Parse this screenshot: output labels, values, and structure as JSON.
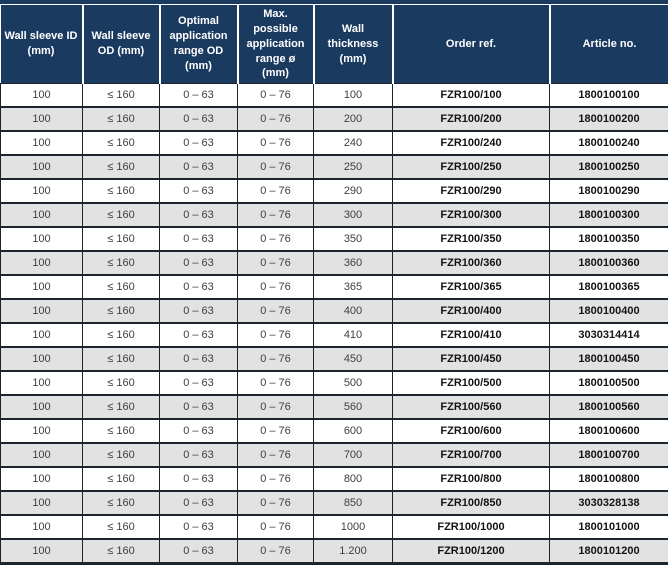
{
  "colors": {
    "header_bg": "#1b3a60",
    "alt_row_bg": "#e2e2e2",
    "grid_line": "#1c2430",
    "header_text": "#ffffff",
    "cell_text": "#3e3e3e",
    "bold_cell_text": "#141414"
  },
  "table": {
    "columns": [
      {
        "key": "wall_sleeve_id",
        "label": "Wall sleeve ID (mm)",
        "bold": false
      },
      {
        "key": "wall_sleeve_od",
        "label": "Wall sleeve OD (mm)",
        "bold": false
      },
      {
        "key": "optimal_application_range_od",
        "label": "Optimal application range OD (mm)",
        "bold": false
      },
      {
        "key": "max_possible_application_range",
        "label": "Max. possible application range ø (mm)",
        "bold": false
      },
      {
        "key": "wall_thickness",
        "label": "Wall thickness (mm)",
        "bold": false
      },
      {
        "key": "order_ref",
        "label": "Order ref.",
        "bold": true
      },
      {
        "key": "article_no",
        "label": "Article no.",
        "bold": true
      }
    ],
    "rows": [
      [
        "100",
        "≤ 160",
        "0 – 63",
        "0 – 76",
        "100",
        "FZR100/100",
        "1800100100"
      ],
      [
        "100",
        "≤ 160",
        "0 – 63",
        "0 – 76",
        "200",
        "FZR100/200",
        "1800100200"
      ],
      [
        "100",
        "≤ 160",
        "0 – 63",
        "0 – 76",
        "240",
        "FZR100/240",
        "1800100240"
      ],
      [
        "100",
        "≤ 160",
        "0 – 63",
        "0 – 76",
        "250",
        "FZR100/250",
        "1800100250"
      ],
      [
        "100",
        "≤ 160",
        "0 – 63",
        "0 – 76",
        "290",
        "FZR100/290",
        "1800100290"
      ],
      [
        "100",
        "≤ 160",
        "0 – 63",
        "0 – 76",
        "300",
        "FZR100/300",
        "1800100300"
      ],
      [
        "100",
        "≤ 160",
        "0 – 63",
        "0 – 76",
        "350",
        "FZR100/350",
        "1800100350"
      ],
      [
        "100",
        "≤ 160",
        "0 – 63",
        "0 – 76",
        "360",
        "FZR100/360",
        "1800100360"
      ],
      [
        "100",
        "≤ 160",
        "0 – 63",
        "0 – 76",
        "365",
        "FZR100/365",
        "1800100365"
      ],
      [
        "100",
        "≤ 160",
        "0 – 63",
        "0 – 76",
        "400",
        "FZR100/400",
        "1800100400"
      ],
      [
        "100",
        "≤ 160",
        "0 – 63",
        "0 – 76",
        "410",
        "FZR100/410",
        "3030314414"
      ],
      [
        "100",
        "≤ 160",
        "0 – 63",
        "0 – 76",
        "450",
        "FZR100/450",
        "1800100450"
      ],
      [
        "100",
        "≤ 160",
        "0 – 63",
        "0 – 76",
        "500",
        "FZR100/500",
        "1800100500"
      ],
      [
        "100",
        "≤ 160",
        "0 – 63",
        "0 – 76",
        "560",
        "FZR100/560",
        "1800100560"
      ],
      [
        "100",
        "≤ 160",
        "0 – 63",
        "0 – 76",
        "600",
        "FZR100/600",
        "1800100600"
      ],
      [
        "100",
        "≤ 160",
        "0 – 63",
        "0 – 76",
        "700",
        "FZR100/700",
        "1800100700"
      ],
      [
        "100",
        "≤ 160",
        "0 – 63",
        "0 – 76",
        "800",
        "FZR100/800",
        "1800100800"
      ],
      [
        "100",
        "≤ 160",
        "0 – 63",
        "0 – 76",
        "850",
        "FZR100/850",
        "3030328138"
      ],
      [
        "100",
        "≤ 160",
        "0 – 63",
        "0 – 76",
        "1000",
        "FZR100/1000",
        "1800101000"
      ],
      [
        "100",
        "≤ 160",
        "0 – 63",
        "0 – 76",
        "1.200",
        "FZR100/1200",
        "1800101200"
      ]
    ]
  }
}
